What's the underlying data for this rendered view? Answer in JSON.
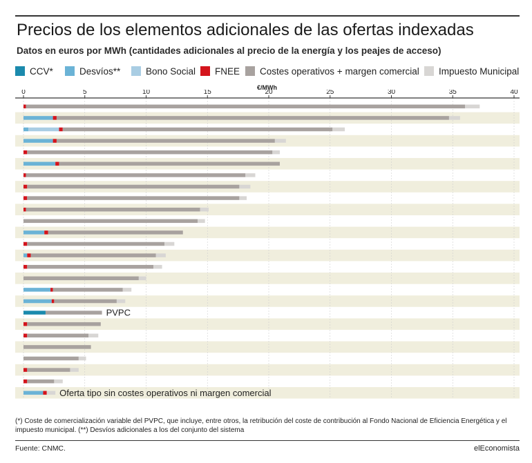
{
  "title": "Precios de los elementos adicionales de las ofertas indexadas",
  "subtitle": "Datos en euros por MWh (cantidades adicionales al precio de la energía y los peajes de acceso)",
  "legend": [
    {
      "name": "CCV*",
      "color": "#1b8aad"
    },
    {
      "name": "Desvíos**",
      "color": "#6bb3d6"
    },
    {
      "name": "Bono Social",
      "color": "#a9cde3"
    },
    {
      "name": "FNEE",
      "color": "#d4141c"
    },
    {
      "name": "Costes operativos + margen comercial",
      "color": "#a8a29f"
    },
    {
      "name": "Impuesto Municipal",
      "color": "#d8d6d4"
    }
  ],
  "footnote": "(*) Coste de comercialización variable del PVPC, que incluye, entre otros, la retribución del coste de contribución al Fondo Nacional de Eficiencia Energética y el impuesto municipal. (**) Desvíos adicionales a los del conjunto del sistema",
  "source": "Fuente: CNMC.",
  "brand": "elEconomista",
  "chart_data": {
    "type": "bar",
    "orientation": "horizontal",
    "stacked": true,
    "xlabel": "€/MWh",
    "xlim": [
      0,
      40
    ],
    "xticks": [
      0,
      5,
      10,
      15,
      20,
      25,
      30,
      35,
      40
    ],
    "grid": true,
    "legend_position": "top",
    "series_names": [
      "CCV*",
      "Desvíos**",
      "Bono Social",
      "FNEE",
      "Costes operativos + margen comercial",
      "Impuesto Municipal"
    ],
    "rows": [
      {
        "label": "",
        "values": [
          0,
          0,
          0,
          0.2,
          35.8,
          1.2
        ]
      },
      {
        "label": "",
        "values": [
          0,
          2.4,
          0,
          0.3,
          32.0,
          0.9
        ]
      },
      {
        "label": "",
        "values": [
          0,
          0.4,
          2.5,
          0.3,
          22.0,
          1.0
        ]
      },
      {
        "label": "",
        "values": [
          0,
          2.4,
          0,
          0.3,
          17.8,
          0.9
        ]
      },
      {
        "label": "",
        "values": [
          0,
          0,
          0,
          0.3,
          20.0,
          0.6
        ]
      },
      {
        "label": "",
        "values": [
          0,
          2.6,
          0,
          0.3,
          18.0,
          0
        ]
      },
      {
        "label": "",
        "values": [
          0,
          0,
          0,
          0.2,
          17.9,
          0.8
        ]
      },
      {
        "label": "",
        "values": [
          0,
          0,
          0,
          0.3,
          17.3,
          0.9
        ]
      },
      {
        "label": "",
        "values": [
          0,
          0,
          0,
          0.3,
          17.3,
          0.6
        ]
      },
      {
        "label": "",
        "values": [
          0,
          0,
          0,
          0.2,
          14.2,
          0.7
        ]
      },
      {
        "label": "",
        "values": [
          0,
          0,
          0,
          0,
          14.2,
          0.6
        ]
      },
      {
        "label": "",
        "values": [
          0,
          1.7,
          0,
          0.3,
          11.0,
          0
        ]
      },
      {
        "label": "",
        "values": [
          0,
          0,
          0,
          0.3,
          11.2,
          0.8
        ]
      },
      {
        "label": "",
        "values": [
          0,
          0.3,
          0,
          0.3,
          10.2,
          0.8
        ]
      },
      {
        "label": "",
        "values": [
          0,
          0,
          0,
          0.3,
          10.3,
          0.7
        ]
      },
      {
        "label": "",
        "values": [
          0,
          0,
          0,
          0,
          9.4,
          0.6
        ]
      },
      {
        "label": "",
        "values": [
          0,
          2.2,
          0,
          0.2,
          5.7,
          0.7
        ]
      },
      {
        "label": "",
        "values": [
          0,
          2.3,
          0,
          0.2,
          5.1,
          0.7
        ]
      },
      {
        "label": "PVPC",
        "values": [
          1.8,
          0,
          0,
          0,
          4.6,
          0
        ]
      },
      {
        "label": "",
        "values": [
          0,
          0,
          0,
          0.3,
          6.0,
          0
        ]
      },
      {
        "label": "",
        "values": [
          0,
          0,
          0,
          0.3,
          5.0,
          0.8
        ]
      },
      {
        "label": "",
        "values": [
          0,
          0,
          0,
          0,
          5.5,
          0
        ]
      },
      {
        "label": "",
        "values": [
          0,
          0,
          0,
          0,
          4.5,
          0.6
        ]
      },
      {
        "label": "",
        "values": [
          0,
          0,
          0,
          0.3,
          3.5,
          0.7
        ]
      },
      {
        "label": "",
        "values": [
          0,
          0,
          0,
          0.3,
          2.2,
          0.7
        ]
      },
      {
        "label": "Oferta tipo sin costes operativos ni margen comercial",
        "values": [
          0,
          1.6,
          0,
          0.3,
          0,
          0.7
        ]
      }
    ]
  }
}
